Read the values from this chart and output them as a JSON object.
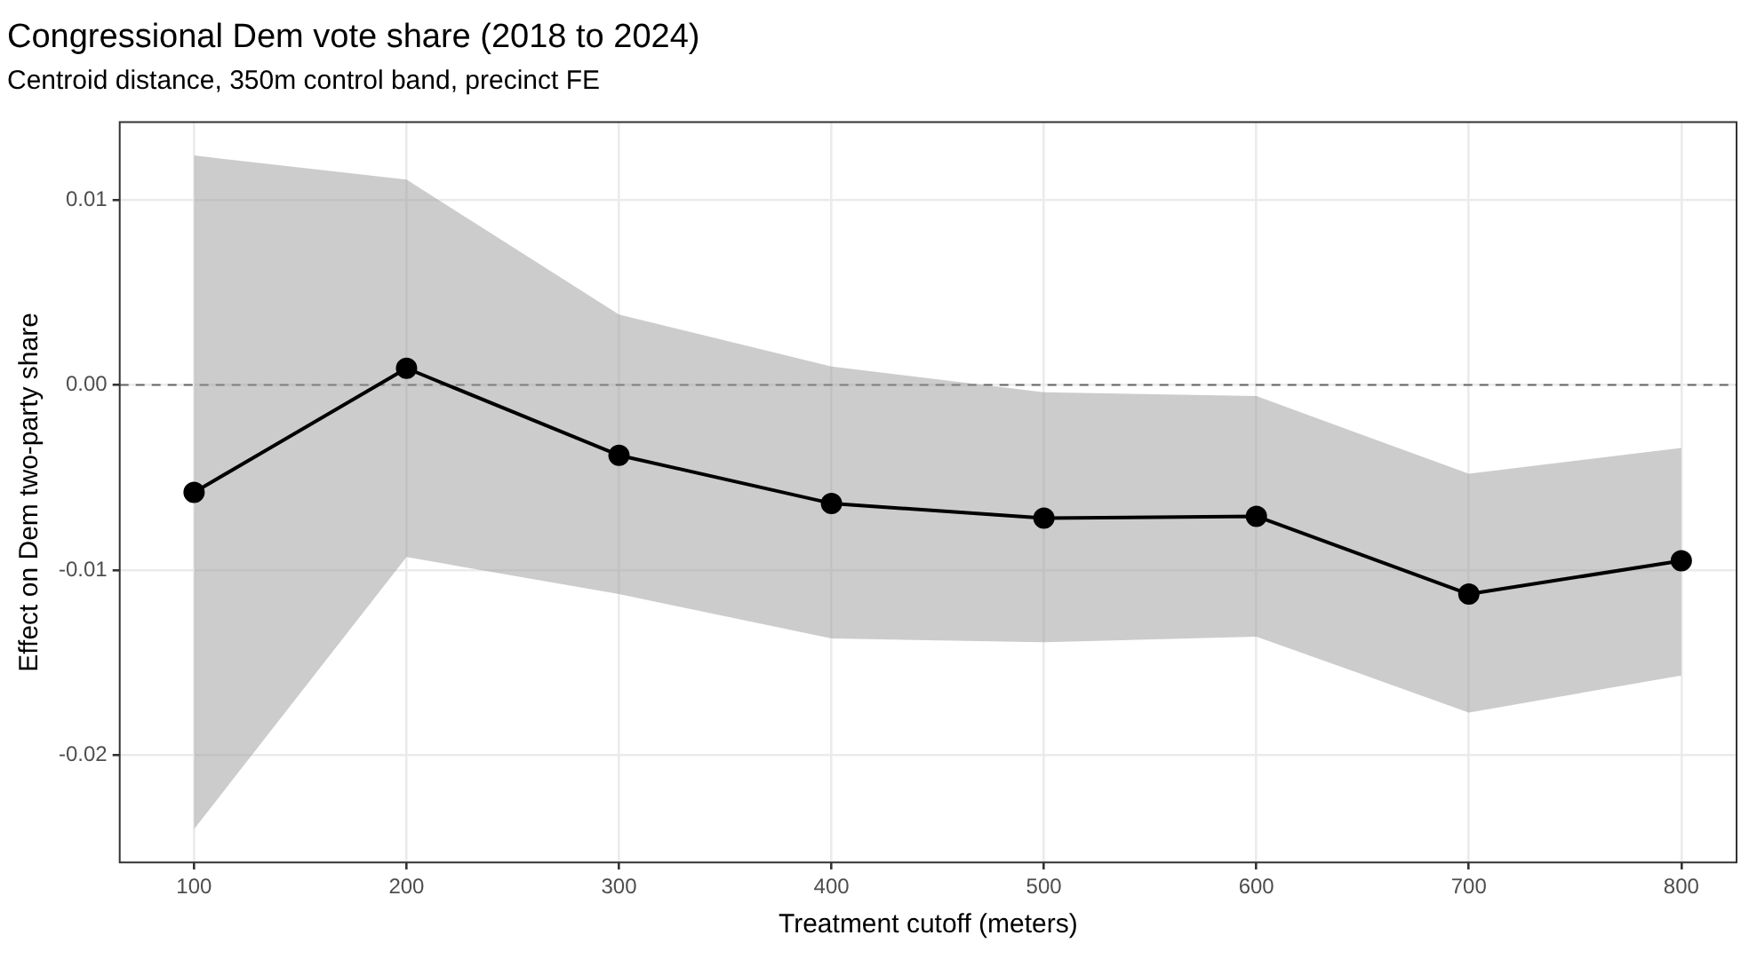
{
  "chart_data": {
    "type": "line",
    "title": "Congressional Dem vote share (2018 to 2024)",
    "subtitle": "Centroid distance, 350m control band, precinct FE",
    "xlabel": "Treatment cutoff (meters)",
    "ylabel": "Effect on Dem two-party share",
    "x": [
      100,
      200,
      300,
      400,
      500,
      600,
      700,
      800
    ],
    "series": [
      {
        "color": "#000000",
        "values": [
          -0.0058,
          0.0009,
          -0.0038,
          -0.0064,
          -0.0072,
          -0.0071,
          -0.0113,
          -0.0095
        ],
        "lower": [
          -0.024,
          -0.0093,
          -0.0113,
          -0.0137,
          -0.0139,
          -0.0136,
          -0.0177,
          -0.0157
        ],
        "upper": [
          0.0124,
          0.0111,
          0.0038,
          0.001,
          -0.0004,
          -0.0006,
          -0.0048,
          -0.0034
        ]
      }
    ],
    "xlim": [
      65,
      826
    ],
    "ylim": [
      -0.0258,
      0.0142
    ],
    "xticks": [
      100,
      200,
      300,
      400,
      500,
      600,
      700,
      800
    ],
    "yticks": [
      {
        "value": 0.01,
        "label": "0.01"
      },
      {
        "value": 0,
        "label": "0.00"
      },
      {
        "value": -0.01,
        "label": "-0.01"
      },
      {
        "value": -0.02,
        "label": "-0.02"
      }
    ],
    "ref_lines": [
      {
        "axis": "y",
        "value": 0,
        "color": "#666666",
        "line_style": "dashed"
      }
    ],
    "grid": true,
    "legend": false,
    "marker": "circle",
    "line_style": "solid"
  }
}
